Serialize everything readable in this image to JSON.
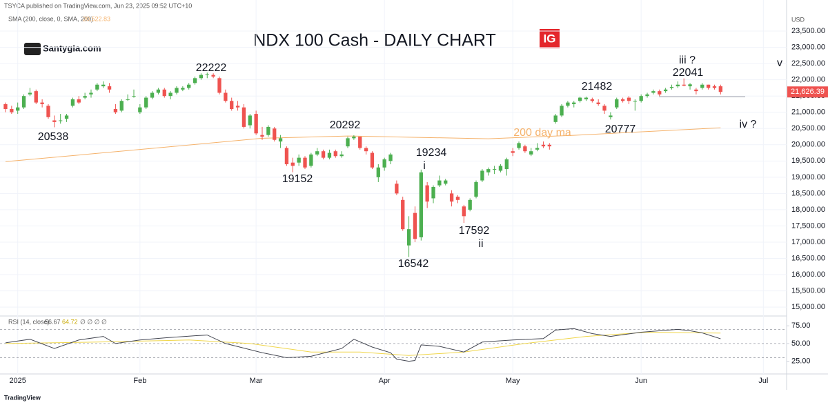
{
  "header": "TSYCA published on TradingView.com, Jun 23, 2025 09:52 UTC+10",
  "logo": "Santygia.com",
  "badge": "IG",
  "footer": "TradingView",
  "chart_data": {
    "type": "candlestick",
    "title": "NDX 100 Cash - DAILY CHART",
    "currency": "USD",
    "up_color": "#4caf50",
    "down_color": "#ef5350",
    "candles": [
      [
        21250,
        21300,
        21000,
        21100
      ],
      [
        21100,
        21200,
        20950,
        21000
      ],
      [
        21050,
        21300,
        20950,
        21150
      ],
      [
        21150,
        21550,
        21100,
        21500
      ],
      [
        21550,
        21750,
        21500,
        21600
      ],
      [
        21650,
        21700,
        21250,
        21300
      ],
      [
        21300,
        21400,
        21150,
        21250
      ],
      [
        21200,
        21250,
        20800,
        20850
      ],
      [
        20750,
        20900,
        20538,
        20700
      ],
      [
        20750,
        20950,
        20650,
        20750
      ],
      [
        20800,
        20950,
        20700,
        20900
      ],
      [
        21200,
        21450,
        21150,
        21400
      ],
      [
        21400,
        21500,
        21250,
        21300
      ],
      [
        21450,
        21600,
        21400,
        21500
      ],
      [
        21550,
        21700,
        21450,
        21600
      ],
      [
        21700,
        21900,
        21650,
        21850
      ],
      [
        21800,
        21950,
        21750,
        21850
      ],
      [
        21800,
        21900,
        21600,
        21700
      ],
      [
        21100,
        21250,
        20950,
        21000
      ],
      [
        21050,
        21400,
        21000,
        21350
      ],
      [
        21400,
        21550,
        21350,
        21400
      ],
      [
        21500,
        21700,
        21450,
        21500
      ],
      [
        21000,
        21250,
        20950,
        21150
      ],
      [
        21150,
        21500,
        21100,
        21450
      ],
      [
        21450,
        21650,
        21400,
        21600
      ],
      [
        21600,
        21750,
        21550,
        21700
      ],
      [
        21700,
        21750,
        21450,
        21500
      ],
      [
        21500,
        21650,
        21400,
        21600
      ],
      [
        21600,
        21800,
        21550,
        21750
      ],
      [
        21700,
        21800,
        21650,
        21750
      ],
      [
        21750,
        21900,
        21700,
        21850
      ],
      [
        21900,
        22100,
        21850,
        22050
      ],
      [
        22050,
        22200,
        22000,
        22150
      ],
      [
        22150,
        22222,
        22050,
        22170
      ],
      [
        22150,
        22200,
        22050,
        22100
      ],
      [
        22050,
        22100,
        21550,
        21600
      ],
      [
        21600,
        21700,
        21300,
        21350
      ],
      [
        21350,
        21450,
        21050,
        21100
      ],
      [
        21200,
        21350,
        21050,
        21150
      ],
      [
        21150,
        21250,
        20500,
        20550
      ],
      [
        20600,
        20950,
        20500,
        20900
      ],
      [
        20950,
        21050,
        20300,
        20350
      ],
      [
        20300,
        20550,
        20150,
        20250
      ],
      [
        20300,
        20600,
        20250,
        20550
      ],
      [
        20500,
        20550,
        20100,
        20150
      ],
      [
        20100,
        20300,
        19900,
        20200
      ],
      [
        19900,
        19950,
        19350,
        19400
      ],
      [
        19450,
        19600,
        19152,
        19350
      ],
      [
        19450,
        19700,
        19350,
        19600
      ],
      [
        19600,
        19650,
        19250,
        19300
      ],
      [
        19350,
        19750,
        19300,
        19700
      ],
      [
        19700,
        19900,
        19650,
        19800
      ],
      [
        19800,
        19850,
        19550,
        19600
      ],
      [
        19600,
        19850,
        19550,
        19750
      ],
      [
        19800,
        19850,
        19600,
        19650
      ],
      [
        19650,
        19800,
        19600,
        19700
      ],
      [
        19950,
        20250,
        19900,
        20200
      ],
      [
        20200,
        20292,
        20150,
        20250
      ],
      [
        20250,
        20250,
        19850,
        19900
      ],
      [
        19900,
        19950,
        19700,
        19800
      ],
      [
        19750,
        19800,
        19250,
        19300
      ],
      [
        19000,
        19400,
        18850,
        19300
      ],
      [
        19300,
        19600,
        19200,
        19550
      ],
      [
        19500,
        19750,
        19400,
        19700
      ],
      [
        18800,
        18900,
        18450,
        18500
      ],
      [
        18300,
        18400,
        17350,
        17400
      ],
      [
        16900,
        17800,
        16542,
        17400
      ],
      [
        17900,
        18100,
        17000,
        17100
      ],
      [
        17150,
        19234,
        17050,
        19150
      ],
      [
        18750,
        18850,
        18050,
        18250
      ],
      [
        18350,
        18750,
        18200,
        18700
      ],
      [
        18750,
        19050,
        18700,
        18900
      ],
      [
        18800,
        18950,
        18750,
        18900
      ],
      [
        18500,
        18600,
        18100,
        18250
      ],
      [
        18400,
        18450,
        18200,
        18300
      ],
      [
        18100,
        18150,
        17592,
        17800
      ],
      [
        18000,
        18350,
        17950,
        18300
      ],
      [
        18400,
        18900,
        18350,
        18850
      ],
      [
        18900,
        19250,
        18850,
        19200
      ],
      [
        19150,
        19300,
        19050,
        19250
      ],
      [
        19250,
        19350,
        19100,
        19250
      ],
      [
        19200,
        19400,
        19150,
        19350
      ],
      [
        19250,
        19600,
        19050,
        19550
      ],
      [
        19800,
        19900,
        19650,
        19750
      ],
      [
        19900,
        20100,
        19850,
        20050
      ],
      [
        19950,
        20000,
        19750,
        19800
      ],
      [
        19700,
        19900,
        19650,
        19800
      ],
      [
        19850,
        20050,
        19800,
        19900
      ],
      [
        20000,
        20100,
        19900,
        19950
      ],
      [
        20000,
        20050,
        19850,
        19950
      ],
      [
        20700,
        20950,
        20650,
        20900
      ],
      [
        20900,
        21250,
        20850,
        21200
      ],
      [
        21200,
        21350,
        21150,
        21300
      ],
      [
        21250,
        21350,
        21150,
        21300
      ],
      [
        21350,
        21480,
        21300,
        21450
      ],
      [
        21400,
        21482,
        21350,
        21450
      ],
      [
        21400,
        21450,
        21300,
        21350
      ],
      [
        21300,
        21400,
        21200,
        21250
      ],
      [
        21200,
        21250,
        20950,
        21050
      ],
      [
        20850,
        21000,
        20777,
        20900
      ],
      [
        21150,
        21450,
        21100,
        21400
      ],
      [
        21400,
        21450,
        21300,
        21350
      ],
      [
        21450,
        21500,
        21250,
        21350
      ],
      [
        21350,
        21400,
        21050,
        21350
      ],
      [
        21350,
        21550,
        21300,
        21500
      ],
      [
        21500,
        21600,
        21450,
        21550
      ],
      [
        21600,
        21700,
        21550,
        21650
      ],
      [
        21650,
        21700,
        21500,
        21550
      ],
      [
        21650,
        21750,
        21600,
        21700
      ],
      [
        21750,
        21850,
        21700,
        21780
      ],
      [
        21800,
        21950,
        21750,
        21850
      ],
      [
        21850,
        22041,
        21800,
        21820
      ],
      [
        21800,
        21900,
        21700,
        21860
      ],
      [
        21700,
        21750,
        21550,
        21650
      ],
      [
        21750,
        21900,
        21700,
        21850
      ],
      [
        21850,
        21850,
        21700,
        21750
      ],
      [
        21800,
        21850,
        21700,
        21750
      ],
      [
        21800,
        21850,
        21550,
        21626.39
      ]
    ],
    "last_price_label": "21,626.39",
    "sma": {
      "name": "SMA (200, close, 0, SMA, 200)",
      "color": "#f5b26b",
      "x": [
        0,
        20,
        42,
        56,
        79,
        93,
        117
      ],
      "values": [
        19480,
        19820,
        20200,
        20270,
        20185,
        20290,
        20522.83
      ],
      "value_label": "20,522.83"
    },
    "xlim": [
      -0.9,
      127.8
    ],
    "xticks": [
      {
        "value": 2,
        "label": "2025"
      },
      {
        "value": 22,
        "label": "Feb"
      },
      {
        "value": 41,
        "label": "Mar"
      },
      {
        "value": 62,
        "label": "Apr"
      },
      {
        "value": 83,
        "label": "May"
      },
      {
        "value": 104,
        "label": "Jun"
      },
      {
        "value": 124,
        "label": "Jul"
      }
    ],
    "ylim": [
      14790,
      23820
    ],
    "yticks": [
      {
        "value": 15000,
        "label": "15,000.00"
      },
      {
        "value": 15500,
        "label": "15,500.00"
      },
      {
        "value": 16000,
        "label": "16,000.00"
      },
      {
        "value": 16500,
        "label": "16,500.00"
      },
      {
        "value": 17000,
        "label": "17,000.00"
      },
      {
        "value": 17500,
        "label": "17,500.00"
      },
      {
        "value": 18000,
        "label": "18,000.00"
      },
      {
        "value": 18500,
        "label": "18,500.00"
      },
      {
        "value": 19000,
        "label": "19,000.00"
      },
      {
        "value": 19500,
        "label": "19,500.00"
      },
      {
        "value": 20000,
        "label": "20,000.00"
      },
      {
        "value": 20500,
        "label": "20,500.00"
      },
      {
        "value": 21000,
        "label": "21,000.00"
      },
      {
        "value": 21500,
        "label": "21,500.00"
      },
      {
        "value": 22000,
        "label": "22,000.00"
      },
      {
        "value": 22500,
        "label": "22,500.00"
      },
      {
        "value": 23000,
        "label": "23,000.00"
      },
      {
        "value": 23500,
        "label": "23,500.00"
      }
    ],
    "grid": true,
    "annotations": [
      {
        "text": "22222"
      },
      {
        "text": "20538"
      },
      {
        "text": "19152"
      },
      {
        "text": "20292"
      },
      {
        "text": "19234"
      },
      {
        "text": "i"
      },
      {
        "text": "16542"
      },
      {
        "text": "17592"
      },
      {
        "text": "ii"
      },
      {
        "text": "21482"
      },
      {
        "text": "20777"
      },
      {
        "text": "iii  ?"
      },
      {
        "text": "22041"
      },
      {
        "text": "v"
      },
      {
        "text": "iv ?"
      },
      {
        "text": "200 day ma"
      }
    ],
    "rsi": {
      "name": "RSI (14, close)",
      "ylim": [
        8,
        84
      ],
      "yticks": [
        {
          "value": 25,
          "label": "25.00"
        },
        {
          "value": 50,
          "label": "50.00"
        },
        {
          "value": 75,
          "label": "75.00"
        }
      ],
      "bands": [
        30,
        50,
        70
      ],
      "line": {
        "color": "#434651",
        "x": [
          0,
          4,
          8,
          12,
          16,
          18,
          22,
          26,
          31,
          33,
          36,
          42,
          46,
          50,
          55,
          57,
          60,
          63,
          64,
          66,
          67,
          68,
          71,
          75,
          78,
          83,
          88,
          90,
          93,
          96,
          99,
          104,
          110,
          112,
          114,
          117
        ],
        "values": [
          51,
          56,
          43,
          55,
          60,
          50,
          55,
          58,
          61,
          62,
          50,
          37,
          30,
          32,
          43,
          56,
          45,
          37,
          28,
          25,
          26,
          48,
          46,
          38,
          52,
          55,
          57,
          69,
          71,
          64,
          60,
          66,
          70,
          68,
          65,
          56.67
        ]
      },
      "ma": {
        "color": "#f0d64a",
        "x": [
          0,
          15,
          30,
          40,
          50,
          58,
          66,
          75,
          85,
          95,
          105,
          117
        ],
        "values": [
          50,
          52,
          55,
          50,
          38,
          38,
          33,
          38,
          50,
          60,
          66,
          64.72
        ]
      },
      "extra": "∅ ∅ ∅ ∅"
    }
  }
}
